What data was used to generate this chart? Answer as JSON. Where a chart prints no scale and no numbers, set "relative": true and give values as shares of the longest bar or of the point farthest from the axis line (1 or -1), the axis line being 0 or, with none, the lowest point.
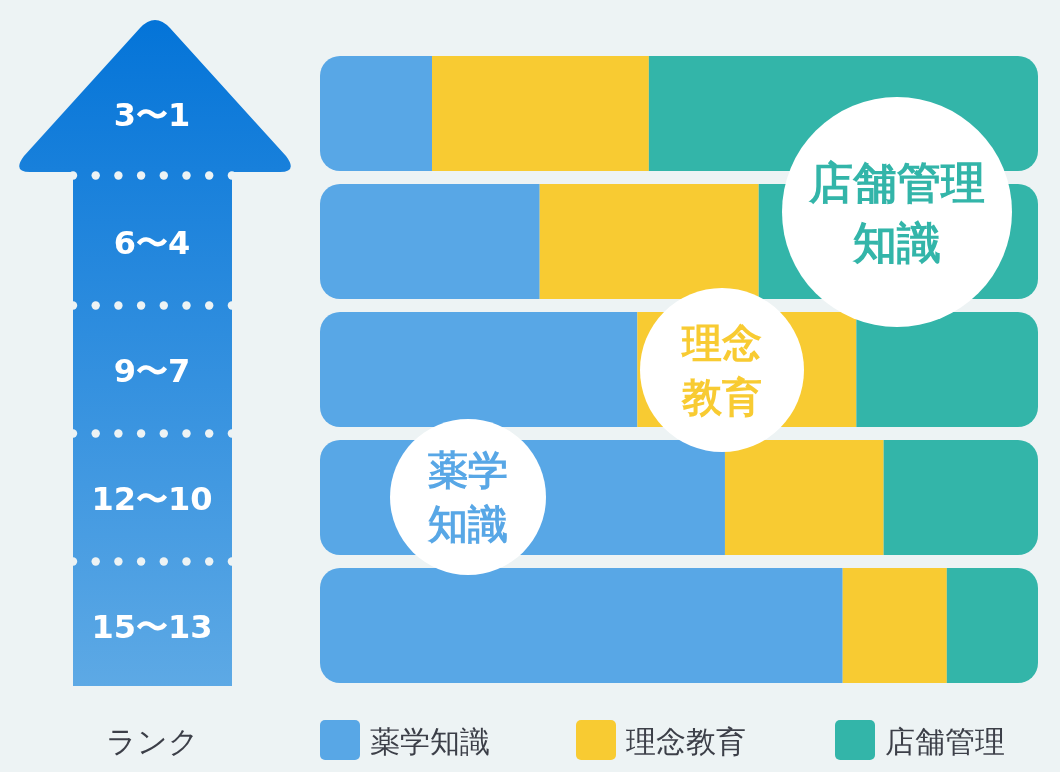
{
  "chart_data": {
    "type": "bar",
    "orientation": "horizontal",
    "stacked": true,
    "relative": true,
    "ylabel": "ランク",
    "categories": [
      "3〜1",
      "6〜4",
      "9〜7",
      "12〜10",
      "15〜13"
    ],
    "series": [
      {
        "name": "薬学知識",
        "color": "#58a7e6",
        "values": [
          0.156,
          0.306,
          0.442,
          0.564,
          0.728
        ]
      },
      {
        "name": "理念教育",
        "color": "#f8cb32",
        "values": [
          0.302,
          0.305,
          0.305,
          0.221,
          0.145
        ]
      },
      {
        "name": "店舗管理",
        "color": "#33b5a9",
        "values": [
          0.542,
          0.389,
          0.253,
          0.215,
          0.127
        ]
      }
    ],
    "annotations": [
      "店舗管理知識",
      "理念教育",
      "薬学知識"
    ],
    "legend": "bottom",
    "grid": false
  }
}
